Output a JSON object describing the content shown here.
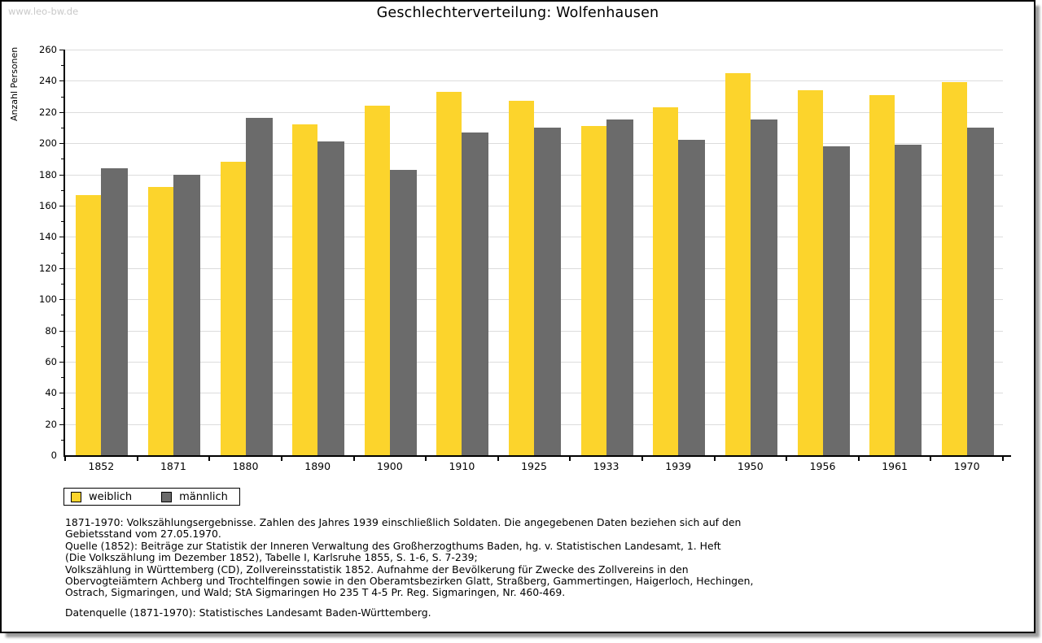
{
  "watermark": "www.leo-bw.de",
  "chart_data": {
    "type": "bar",
    "title": "Geschlechterverteilung: Wolfenhausen",
    "ylabel": "Anzahl Personen",
    "xlabel": "",
    "categories": [
      "1852",
      "1871",
      "1880",
      "1890",
      "1900",
      "1910",
      "1925",
      "1933",
      "1939",
      "1950",
      "1956",
      "1961",
      "1970"
    ],
    "series": [
      {
        "name": "weiblich",
        "color": "#fcd42c",
        "values": [
          167,
          172,
          188,
          212,
          224,
          233,
          227,
          211,
          223,
          245,
          234,
          231,
          239
        ]
      },
      {
        "name": "männlich",
        "color": "#6b6b6b",
        "values": [
          184,
          180,
          216,
          201,
          183,
          207,
          210,
          215,
          202,
          215,
          198,
          199,
          210
        ]
      }
    ],
    "ylim": [
      0,
      260
    ],
    "ytick_major": 20,
    "ytick_minor": 10,
    "grid": true,
    "gridline_color": "#dcdcdc",
    "axis_color": "#000000",
    "legend_position": "bottom-left"
  },
  "footer": {
    "source_lines": [
      "1871-1970: Volkszählungsergebnisse. Zahlen des Jahres 1939 einschließlich Soldaten. Die angegebenen Daten beziehen sich auf den",
      "Gebietsstand vom 27.05.1970.",
      "Quelle (1852): Beiträge zur Statistik der Inneren Verwaltung des Großherzogthums Baden, hg. v. Statistischen Landesamt, 1. Heft",
      "(Die Volkszählung im Dezember 1852), Tabelle I, Karlsruhe 1855, S. 1-6, S. 7-239;",
      "Volkszählung in Württemberg (CD), Zollvereinsstatistik 1852. Aufnahme der Bevölkerung für Zwecke des Zollvereins in den",
      "Obervogteiämtern Achberg und Trochtelfingen sowie in den Oberamtsbezirken Glatt, Straßberg, Gammertingen, Haigerloch, Hechingen,",
      "Ostrach, Sigmaringen, und Wald; StA Sigmaringen Ho 235 T 4-5 Pr. Reg. Sigmaringen, Nr. 460-469."
    ],
    "datasource": "Datenquelle (1871-1970): Statistisches Landesamt Baden-Württemberg."
  }
}
